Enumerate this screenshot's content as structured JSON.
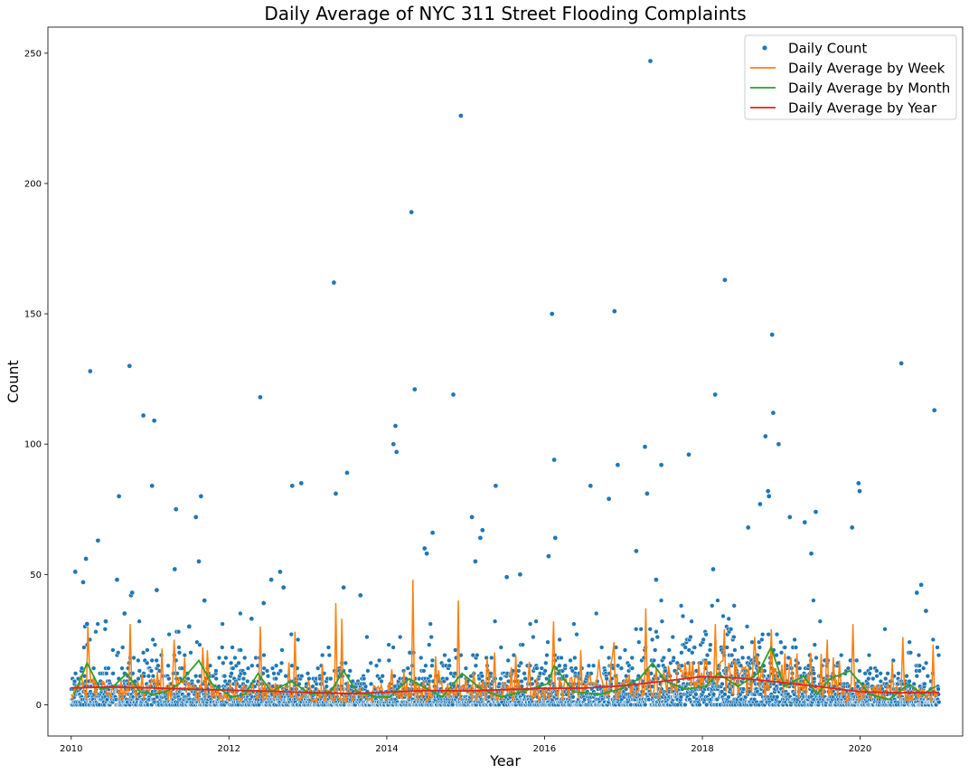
{
  "chart_data": {
    "type": "scatter",
    "title": "Daily Average of NYC 311 Street Flooding Complaints",
    "xlabel": "Year",
    "ylabel": "Count",
    "xlim": [
      "2009-09-15",
      "2021-04-20"
    ],
    "ylim": [
      -12,
      260
    ],
    "x_ticks": [
      "2010",
      "2012",
      "2014",
      "2016",
      "2018",
      "2020"
    ],
    "y_ticks": [
      0,
      50,
      100,
      150,
      200,
      250
    ],
    "grid": false,
    "legend_position": "top-right",
    "legend": [
      "Daily Count",
      "Daily Average by Week",
      "Daily Average by Month",
      "Daily Average by Year"
    ],
    "colors": {
      "daily": "#1f77b4",
      "week": "#ff7f0e",
      "month": "#2ca02c",
      "year": "#d62728"
    },
    "series": [
      {
        "name": "Daily Count",
        "style": "points",
        "points": [
          [
            "2010-01-20",
            51
          ],
          [
            "2010-02-25",
            47
          ],
          [
            "2010-03-10",
            56
          ],
          [
            "2010-03-30",
            128
          ],
          [
            "2010-03-15",
            31
          ],
          [
            "2010-05-05",
            63
          ],
          [
            "2010-06-10",
            32
          ],
          [
            "2010-08-10",
            80
          ],
          [
            "2010-08-01",
            48
          ],
          [
            "2010-09-05",
            35
          ],
          [
            "2010-09-28",
            130
          ],
          [
            "2010-10-05",
            42
          ],
          [
            "2010-10-10",
            43
          ],
          [
            "2010-12-01",
            111
          ],
          [
            "2011-01-10",
            84
          ],
          [
            "2011-01-20",
            109
          ],
          [
            "2011-02-01",
            44
          ],
          [
            "2011-04-25",
            52
          ],
          [
            "2011-05-01",
            75
          ],
          [
            "2011-07-01",
            30
          ],
          [
            "2011-08-01",
            72
          ],
          [
            "2011-08-15",
            55
          ],
          [
            "2011-08-25",
            80
          ],
          [
            "2011-09-10",
            40
          ],
          [
            "2012-04-15",
            33
          ],
          [
            "2012-05-25",
            118
          ],
          [
            "2012-06-10",
            39
          ],
          [
            "2012-07-15",
            48
          ],
          [
            "2012-08-25",
            51
          ],
          [
            "2012-09-10",
            45
          ],
          [
            "2012-10-20",
            84
          ],
          [
            "2012-12-01",
            85
          ],
          [
            "2013-05-01",
            162
          ],
          [
            "2013-05-10",
            81
          ],
          [
            "2013-07-01",
            89
          ],
          [
            "2013-06-15",
            45
          ],
          [
            "2013-09-01",
            42
          ],
          [
            "2014-02-01",
            100
          ],
          [
            "2014-02-10",
            107
          ],
          [
            "2014-02-15",
            97
          ],
          [
            "2014-04-25",
            189
          ],
          [
            "2014-05-10",
            121
          ],
          [
            "2014-06-25",
            60
          ],
          [
            "2014-07-05",
            58
          ],
          [
            "2014-08-01",
            66
          ],
          [
            "2014-11-05",
            119
          ],
          [
            "2014-12-10",
            226
          ],
          [
            "2015-01-30",
            72
          ],
          [
            "2015-02-15",
            55
          ],
          [
            "2015-03-10",
            64
          ],
          [
            "2015-03-20",
            67
          ],
          [
            "2015-05-20",
            84
          ],
          [
            "2015-07-10",
            49
          ],
          [
            "2015-09-10",
            50
          ],
          [
            "2016-01-20",
            57
          ],
          [
            "2016-02-05",
            150
          ],
          [
            "2016-02-15",
            94
          ],
          [
            "2016-02-20",
            64
          ],
          [
            "2016-08-01",
            84
          ],
          [
            "2016-10-25",
            79
          ],
          [
            "2016-11-20",
            151
          ],
          [
            "2016-12-05",
            92
          ],
          [
            "2017-03-01",
            59
          ],
          [
            "2017-04-10",
            99
          ],
          [
            "2017-04-20",
            81
          ],
          [
            "2017-05-05",
            247
          ],
          [
            "2017-06-01",
            48
          ],
          [
            "2017-06-25",
            92
          ],
          [
            "2017-10-30",
            96
          ],
          [
            "2018-02-20",
            52
          ],
          [
            "2018-03-01",
            119
          ],
          [
            "2018-04-15",
            163
          ],
          [
            "2018-08-01",
            68
          ],
          [
            "2018-09-25",
            77
          ],
          [
            "2018-10-20",
            103
          ],
          [
            "2018-11-01",
            82
          ],
          [
            "2018-11-05",
            80
          ],
          [
            "2018-11-20",
            142
          ],
          [
            "2018-11-25",
            112
          ],
          [
            "2018-12-20",
            100
          ],
          [
            "2019-02-10",
            72
          ],
          [
            "2019-04-20",
            70
          ],
          [
            "2019-06-10",
            74
          ],
          [
            "2019-05-20",
            58
          ],
          [
            "2019-11-25",
            68
          ],
          [
            "2019-12-25",
            85
          ],
          [
            "2019-12-30",
            82
          ],
          [
            "2020-07-10",
            131
          ],
          [
            "2020-10-10",
            46
          ],
          [
            "2020-12-10",
            113
          ],
          [
            "2020-11-01",
            36
          ],
          [
            "2020-09-20",
            43
          ]
        ],
        "note": "plus a dense band of daily counts between 0 and 30 spanning 2010-2021"
      },
      {
        "name": "Daily Average by Week",
        "style": "line",
        "spikes": [
          [
            "2010-03-20",
            30
          ],
          [
            "2010-10-01",
            31
          ],
          [
            "2011-04-25",
            25
          ],
          [
            "2011-09-01",
            22
          ],
          [
            "2012-05-25",
            30
          ],
          [
            "2012-11-01",
            28
          ],
          [
            "2013-05-10",
            39
          ],
          [
            "2013-06-10",
            33
          ],
          [
            "2014-04-30",
            48
          ],
          [
            "2014-12-01",
            40
          ],
          [
            "2015-05-15",
            20
          ],
          [
            "2016-02-10",
            32
          ],
          [
            "2016-06-20",
            21
          ],
          [
            "2016-11-15",
            24
          ],
          [
            "2017-04-15",
            37
          ],
          [
            "2017-09-15",
            15
          ],
          [
            "2018-03-01",
            31
          ],
          [
            "2018-04-15",
            29
          ],
          [
            "2018-09-01",
            26
          ],
          [
            "2018-11-15",
            29
          ],
          [
            "2019-05-15",
            20
          ],
          [
            "2019-08-01",
            25
          ],
          [
            "2019-12-01",
            31
          ],
          [
            "2020-07-20",
            26
          ],
          [
            "2020-12-05",
            23
          ]
        ]
      },
      {
        "name": "Daily Average by Month",
        "style": "line",
        "points": [
          [
            "2010-01-15",
            4
          ],
          [
            "2010-03-15",
            16
          ],
          [
            "2010-05-15",
            6
          ],
          [
            "2010-07-15",
            7
          ],
          [
            "2010-09-15",
            12
          ],
          [
            "2010-11-15",
            5
          ],
          [
            "2011-01-15",
            4
          ],
          [
            "2011-03-15",
            5
          ],
          [
            "2011-05-15",
            8
          ],
          [
            "2011-08-15",
            17
          ],
          [
            "2011-10-15",
            8
          ],
          [
            "2012-01-15",
            3
          ],
          [
            "2012-03-15",
            4
          ],
          [
            "2012-05-15",
            12
          ],
          [
            "2012-07-15",
            5
          ],
          [
            "2012-10-15",
            9
          ],
          [
            "2013-01-15",
            4
          ],
          [
            "2013-04-15",
            5
          ],
          [
            "2013-06-15",
            13
          ],
          [
            "2013-08-15",
            5
          ],
          [
            "2013-11-15",
            3
          ],
          [
            "2014-01-15",
            3
          ],
          [
            "2014-04-15",
            10
          ],
          [
            "2014-06-15",
            7
          ],
          [
            "2014-09-15",
            3
          ],
          [
            "2014-12-15",
            12
          ],
          [
            "2015-03-15",
            6
          ],
          [
            "2015-06-15",
            3
          ],
          [
            "2015-09-15",
            5
          ],
          [
            "2016-01-15",
            8
          ],
          [
            "2016-02-15",
            15
          ],
          [
            "2016-05-15",
            5
          ],
          [
            "2016-09-15",
            4
          ],
          [
            "2016-12-15",
            6
          ],
          [
            "2017-03-15",
            10
          ],
          [
            "2017-05-15",
            16
          ],
          [
            "2017-07-15",
            9
          ],
          [
            "2017-10-15",
            6
          ],
          [
            "2018-01-15",
            7
          ],
          [
            "2018-03-15",
            12
          ],
          [
            "2018-06-15",
            7
          ],
          [
            "2018-09-15",
            12
          ],
          [
            "2018-11-15",
            22
          ],
          [
            "2019-01-15",
            7
          ],
          [
            "2019-04-15",
            11
          ],
          [
            "2019-06-15",
            4
          ],
          [
            "2019-08-15",
            10
          ],
          [
            "2019-11-15",
            13
          ],
          [
            "2020-02-15",
            4
          ],
          [
            "2020-05-15",
            2
          ],
          [
            "2020-08-15",
            8
          ],
          [
            "2020-10-15",
            4
          ],
          [
            "2020-12-15",
            7
          ]
        ]
      },
      {
        "name": "Daily Average by Year",
        "style": "line",
        "points": [
          [
            "2010-01-01",
            6.5
          ],
          [
            "2010-07-01",
            6.8
          ],
          [
            "2011-01-01",
            6.5
          ],
          [
            "2011-07-01",
            6.0
          ],
          [
            "2012-01-01",
            5.6
          ],
          [
            "2012-07-01",
            5.2
          ],
          [
            "2013-01-01",
            4.7
          ],
          [
            "2013-07-01",
            4.3
          ],
          [
            "2014-01-01",
            4.8
          ],
          [
            "2014-07-01",
            5.5
          ],
          [
            "2015-01-01",
            5.3
          ],
          [
            "2015-07-01",
            5.8
          ],
          [
            "2016-01-01",
            6.3
          ],
          [
            "2016-07-01",
            6.4
          ],
          [
            "2017-01-01",
            7.3
          ],
          [
            "2017-07-01",
            9.0
          ],
          [
            "2018-01-01",
            10.8
          ],
          [
            "2018-07-01",
            10.2
          ],
          [
            "2019-01-01",
            8.6
          ],
          [
            "2019-07-01",
            6.9
          ],
          [
            "2020-01-01",
            5.0
          ],
          [
            "2020-07-01",
            4.6
          ],
          [
            "2021-01-01",
            4.8
          ]
        ]
      }
    ]
  }
}
